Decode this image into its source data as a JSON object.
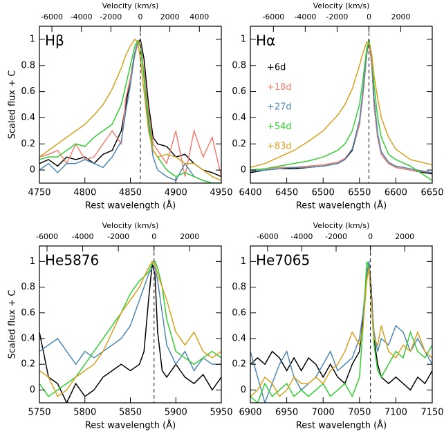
{
  "chart_data": [
    {
      "type": "line",
      "title": "Hβ",
      "ylabel": "Scaled flux + C",
      "xlabel": "Rest wavelength (Å)",
      "x2label": "Velocity (km/s)",
      "xlim": [
        4750,
        4950
      ],
      "xticks": [
        4750,
        4800,
        4850,
        4900,
        4950
      ],
      "ylim": [
        -0.1,
        1.1
      ],
      "yticks": [
        0,
        0.2,
        0.4,
        0.6,
        0.8,
        1
      ],
      "x2lim": [
        -6846,
        5489
      ],
      "x2ticks": [
        -6000,
        -4000,
        -2000,
        0,
        2000,
        4000
      ],
      "vline": 4861,
      "x": [
        4750,
        4760,
        4770,
        4780,
        4790,
        4800,
        4810,
        4820,
        4830,
        4840,
        4845,
        4850,
        4855,
        4858,
        4861,
        4865,
        4870,
        4875,
        4880,
        4890,
        4900,
        4910,
        4920,
        4930,
        4940,
        4950
      ],
      "series": [
        {
          "color": "#000000",
          "values": [
            0.05,
            0.08,
            0.03,
            0.1,
            0.08,
            0.1,
            0.05,
            0.12,
            0.15,
            0.3,
            0.5,
            0.7,
            0.9,
            0.97,
            1.0,
            0.85,
            0.5,
            0.25,
            0.2,
            0.18,
            0.1,
            0.12,
            0.05,
            0.0,
            -0.02,
            -0.05
          ]
        },
        {
          "color": "#f08070",
          "values": [
            0.1,
            0.12,
            0.15,
            0.05,
            0.2,
            0.08,
            0.1,
            0.2,
            0.3,
            0.2,
            0.55,
            0.7,
            0.88,
            0.96,
            0.98,
            0.75,
            0.45,
            0.2,
            0.15,
            0.05,
            0.3,
            -0.05,
            0.3,
            0.1,
            0.25,
            -0.05
          ]
        },
        {
          "color": "#4f86b0",
          "values": [
            0.0,
            0.05,
            -0.02,
            0.05,
            0.05,
            0.08,
            0.05,
            0.02,
            0.1,
            0.22,
            0.45,
            0.65,
            0.9,
            0.98,
            0.95,
            0.7,
            0.35,
            0.1,
            0.0,
            -0.05,
            -0.08,
            0.05,
            -0.05,
            -0.08,
            -0.1,
            -0.1
          ]
        },
        {
          "color": "#33cc33",
          "values": [
            0.08,
            0.1,
            0.1,
            0.15,
            0.2,
            0.18,
            0.25,
            0.3,
            0.35,
            0.5,
            0.65,
            0.8,
            0.95,
            0.99,
            0.95,
            0.7,
            0.4,
            0.15,
            0.1,
            0.0,
            -0.05,
            -0.02,
            -0.05,
            -0.08,
            -0.1,
            -0.1
          ]
        },
        {
          "color": "#d4a020",
          "values": [
            0.1,
            0.15,
            0.2,
            0.25,
            0.3,
            0.35,
            0.42,
            0.5,
            0.62,
            0.78,
            0.88,
            0.95,
            1.0,
            0.98,
            0.85,
            0.6,
            0.3,
            0.15,
            0.1,
            0.12,
            0.1,
            0.05,
            0.05,
            0.0,
            -0.05,
            -0.08
          ]
        }
      ]
    },
    {
      "type": "line",
      "title": "Hα",
      "xlabel": "Rest wavelength (Å)",
      "x2label": "Velocity (km/s)",
      "legend": "upper left",
      "xlim": [
        6400,
        6650
      ],
      "xticks": [
        6400,
        6450,
        6500,
        6550,
        6600,
        6650
      ],
      "ylim": [
        -0.1,
        1.1
      ],
      "yticks": [
        0,
        0.2,
        0.4,
        0.6,
        0.8,
        1
      ],
      "x2lim": [
        -7446,
        3974
      ],
      "x2ticks": [
        -6000,
        -4000,
        -2000,
        0,
        2000
      ],
      "vline": 6563,
      "x": [
        6400,
        6420,
        6440,
        6460,
        6480,
        6500,
        6520,
        6530,
        6540,
        6550,
        6555,
        6560,
        6563,
        6567,
        6570,
        6575,
        6580,
        6590,
        6600,
        6620,
        6650
      ],
      "series": [
        {
          "name": "+6d",
          "color": "#000000",
          "values": [
            -0.02,
            0,
            0.01,
            0.01,
            0.02,
            0.03,
            0.05,
            0.08,
            0.15,
            0.35,
            0.6,
            0.9,
            1.0,
            0.8,
            0.5,
            0.25,
            0.12,
            0.05,
            0.02,
            0,
            -0.03
          ]
        },
        {
          "name": "+18d",
          "color": "#f08070",
          "values": [
            0,
            0.01,
            0.02,
            0.02,
            0.03,
            0.04,
            0.06,
            0.09,
            0.16,
            0.35,
            0.58,
            0.88,
            0.98,
            0.8,
            0.5,
            0.25,
            0.12,
            0.05,
            0.02,
            0.0,
            -0.02
          ]
        },
        {
          "name": "+27d",
          "color": "#4f86b0",
          "values": [
            -0.01,
            0,
            0.01,
            0.02,
            0.02,
            0.03,
            0.05,
            0.08,
            0.16,
            0.38,
            0.62,
            0.9,
            0.99,
            0.85,
            0.55,
            0.28,
            0.14,
            0.06,
            0.03,
            0.01,
            -0.02
          ]
        },
        {
          "name": "+54d",
          "color": "#33cc33",
          "values": [
            0,
            0.01,
            0.03,
            0.05,
            0.07,
            0.1,
            0.15,
            0.2,
            0.3,
            0.5,
            0.7,
            0.93,
            0.99,
            0.88,
            0.65,
            0.4,
            0.25,
            0.12,
            0.08,
            0.03,
            -0.08
          ]
        },
        {
          "name": "+83d",
          "color": "#d4a020",
          "values": [
            0.02,
            0.05,
            0.1,
            0.15,
            0.22,
            0.3,
            0.42,
            0.5,
            0.62,
            0.8,
            0.9,
            0.98,
            0.97,
            0.88,
            0.72,
            0.55,
            0.4,
            0.25,
            0.16,
            0.08,
            0.04
          ]
        }
      ]
    },
    {
      "type": "line",
      "title": "He5876",
      "ylabel": "Scaled flux + C",
      "xlabel": "Rest wavelength (Å)",
      "x2label": "Velocity (km/s)",
      "xlim": [
        5750,
        5950
      ],
      "xticks": [
        5750,
        5800,
        5850,
        5900,
        5950
      ],
      "ylim": [
        -0.1,
        1.12
      ],
      "yticks": [
        0,
        0.2,
        0.4,
        0.6,
        0.8,
        1
      ],
      "x2lim": [
        -6428,
        3775
      ],
      "x2ticks": [
        -6000,
        -4000,
        -2000,
        0,
        2000
      ],
      "vline": 5876,
      "x": [
        5750,
        5760,
        5770,
        5780,
        5790,
        5800,
        5810,
        5820,
        5830,
        5840,
        5850,
        5860,
        5865,
        5870,
        5874,
        5877,
        5880,
        5885,
        5890,
        5900,
        5910,
        5920,
        5930,
        5940,
        5950
      ],
      "series": [
        {
          "color": "#000000",
          "values": [
            0.45,
            0.1,
            0.05,
            -0.1,
            0.05,
            -0.05,
            0.0,
            0.1,
            0.15,
            0.2,
            0.15,
            0.2,
            0.3,
            0.7,
            0.98,
            0.9,
            0.45,
            0.15,
            0.1,
            0.2,
            0.1,
            0.05,
            0.12,
            0.0,
            0.1
          ]
        },
        {
          "color": "#4f86b0",
          "values": [
            0.3,
            0.35,
            0.4,
            0.3,
            0.2,
            0.3,
            0.25,
            0.3,
            0.35,
            0.4,
            0.5,
            0.7,
            0.8,
            0.9,
            0.95,
            0.95,
            0.85,
            0.6,
            0.35,
            0.2,
            0.3,
            0.15,
            0.25,
            0.2,
            0.2
          ]
        },
        {
          "color": "#33cc33",
          "values": [
            0.05,
            -0.05,
            0.0,
            0.05,
            0.1,
            0.2,
            0.3,
            0.4,
            0.5,
            0.6,
            0.75,
            0.85,
            0.88,
            0.92,
            0.98,
            1.0,
            0.95,
            0.8,
            0.55,
            0.3,
            0.25,
            0.2,
            0.25,
            0.3,
            0.25
          ]
        },
        {
          "color": "#d4a020",
          "values": [
            0.15,
            0.1,
            -0.05,
            0.0,
            0.1,
            0.15,
            0.2,
            0.3,
            0.45,
            0.6,
            0.7,
            0.8,
            0.88,
            0.95,
            1.0,
            0.98,
            0.9,
            0.8,
            0.7,
            0.45,
            0.35,
            0.45,
            0.3,
            0.25,
            0.3
          ]
        }
      ]
    },
    {
      "type": "line",
      "title": "He7065",
      "xlabel": "Rest wavelength (Å)",
      "x2label": "Velocity (km/s)",
      "xlim": [
        6900,
        7150
      ],
      "xticks": [
        6900,
        6950,
        7000,
        7050,
        7100,
        7150
      ],
      "ylim": [
        -0.1,
        1.12
      ],
      "yticks": [
        0,
        0.2,
        0.4,
        0.6,
        0.8,
        1
      ],
      "x2lim": [
        -7002,
        3607
      ],
      "x2ticks": [
        -6000,
        -4000,
        -2000,
        0,
        2000
      ],
      "vline": 7065,
      "x": [
        6900,
        6910,
        6920,
        6930,
        6940,
        6950,
        6960,
        6970,
        6980,
        6990,
        7000,
        7010,
        7020,
        7030,
        7040,
        7050,
        7055,
        7060,
        7063,
        7066,
        7070,
        7075,
        7080,
        7090,
        7100,
        7110,
        7120,
        7130,
        7140,
        7150
      ],
      "series": [
        {
          "color": "#000000",
          "values": [
            0.2,
            0.25,
            0.2,
            0.3,
            0.25,
            0.15,
            0.25,
            0.15,
            0.25,
            0.2,
            0.1,
            0.2,
            0.1,
            0.05,
            0.2,
            0.3,
            0.55,
            0.9,
            1.0,
            0.8,
            0.4,
            0.2,
            0.1,
            0.05,
            0.1,
            0.05,
            0.0,
            0.1,
            0.05,
            0.15
          ]
        },
        {
          "color": "#4f86b0",
          "values": [
            0.3,
            0.1,
            -0.1,
            0.05,
            0.2,
            0.3,
            0.1,
            0.0,
            0.05,
            0.1,
            0.2,
            0.3,
            0.15,
            0.2,
            0.25,
            0.4,
            0.6,
            0.9,
            1.0,
            0.75,
            0.45,
            0.3,
            0.4,
            0.35,
            0.5,
            0.45,
            0.3,
            0.4,
            0.3,
            0.2
          ]
        },
        {
          "color": "#33cc33",
          "values": [
            -0.05,
            -0.1,
            0.05,
            -0.05,
            0.0,
            0.05,
            -0.05,
            0.0,
            -0.05,
            0.0,
            0.05,
            -0.05,
            0.0,
            0.05,
            -0.05,
            0.1,
            0.5,
            1.0,
            0.95,
            0.7,
            0.35,
            0.15,
            0.1,
            0.2,
            0.3,
            0.25,
            0.45,
            0.3,
            0.25,
            0.35
          ]
        },
        {
          "color": "#d4a020",
          "values": [
            -0.05,
            0.0,
            0.1,
            0.05,
            -0.05,
            0.0,
            0.1,
            0.05,
            0.05,
            0.1,
            0.05,
            0.15,
            0.2,
            0.3,
            0.45,
            0.35,
            0.5,
            0.85,
            0.95,
            0.7,
            0.4,
            0.35,
            0.5,
            0.3,
            0.25,
            0.35,
            0.3,
            0.45,
            0.3,
            0.25
          ]
        }
      ]
    }
  ]
}
